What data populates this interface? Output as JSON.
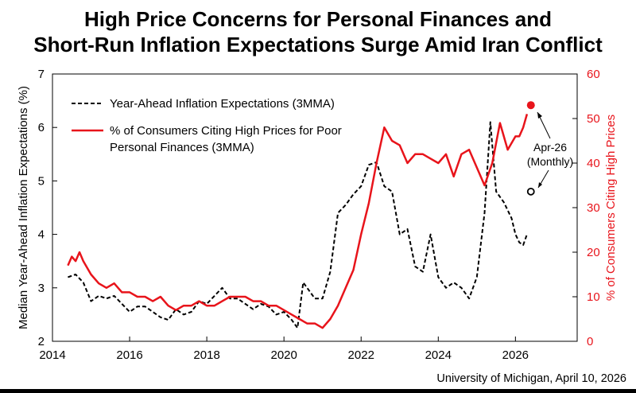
{
  "title_line1": "High Price Concerns for Personal Finances and",
  "title_line2": "Short-Run Inflation Expectations Surge Amid Iran Conflict",
  "source": "University of Michigan, April 10, 2026",
  "colors": {
    "inflation": "#000000",
    "high_prices": "#e8141b"
  },
  "chart_data": {
    "type": "line",
    "title": "High Price Concerns for Personal Finances and Short-Run Inflation Expectations Surge Amid Iran Conflict",
    "xlim": [
      2014,
      2027.6
    ],
    "x_ticks": [
      2014,
      2016,
      2018,
      2020,
      2022,
      2024,
      2026
    ],
    "x_tick_labels": [
      "2014",
      "2016",
      "2018",
      "2020",
      "2022",
      "2024",
      "2026"
    ],
    "ylabel_left": "Median Year-Ahead Inflation Expectations (%)",
    "ylim_left": [
      2,
      7
    ],
    "y_ticks_left": [
      2,
      3,
      4,
      5,
      6,
      7
    ],
    "ylabel_right": "% of Consumers Citing High Prices",
    "ylim_right": [
      0,
      60
    ],
    "y_ticks_right": [
      0,
      10,
      20,
      30,
      40,
      50,
      60
    ],
    "grid": false,
    "legend_position": "top-left",
    "series": [
      {
        "name": "Year-Ahead Inflation Expectations (3MMA)",
        "axis": "left",
        "style": "dashed",
        "color": "#000000",
        "x": [
          2014.4,
          2014.6,
          2014.8,
          2015.0,
          2015.2,
          2015.4,
          2015.6,
          2015.8,
          2016.0,
          2016.2,
          2016.4,
          2016.6,
          2016.8,
          2017.0,
          2017.2,
          2017.4,
          2017.6,
          2017.8,
          2018.0,
          2018.2,
          2018.4,
          2018.6,
          2018.8,
          2019.0,
          2019.2,
          2019.4,
          2019.6,
          2019.8,
          2020.0,
          2020.2,
          2020.35,
          2020.5,
          2020.6,
          2020.8,
          2021.0,
          2021.2,
          2021.4,
          2021.6,
          2021.8,
          2022.0,
          2022.2,
          2022.4,
          2022.6,
          2022.8,
          2023.0,
          2023.2,
          2023.4,
          2023.6,
          2023.8,
          2024.0,
          2024.2,
          2024.4,
          2024.6,
          2024.8,
          2025.0,
          2025.2,
          2025.35,
          2025.5,
          2025.7,
          2025.9,
          2026.0,
          2026.1,
          2026.2,
          2026.3
        ],
        "y": [
          3.2,
          3.25,
          3.1,
          2.75,
          2.85,
          2.8,
          2.85,
          2.7,
          2.55,
          2.65,
          2.65,
          2.55,
          2.45,
          2.4,
          2.6,
          2.5,
          2.55,
          2.75,
          2.7,
          2.85,
          3.0,
          2.8,
          2.8,
          2.7,
          2.6,
          2.7,
          2.65,
          2.5,
          2.55,
          2.4,
          2.25,
          3.1,
          3.0,
          2.8,
          2.8,
          3.3,
          4.4,
          4.55,
          4.75,
          4.9,
          5.3,
          5.35,
          4.9,
          4.8,
          4.0,
          4.1,
          3.4,
          3.3,
          4.0,
          3.2,
          3.0,
          3.1,
          3.0,
          2.8,
          3.2,
          4.4,
          6.1,
          4.8,
          4.6,
          4.3,
          4.0,
          3.85,
          3.8,
          4.0
        ]
      },
      {
        "name": "% of Consumers Citing High Prices for Poor Personal Finances (3MMA)",
        "axis": "right",
        "style": "solid",
        "color": "#e8141b",
        "x": [
          2014.4,
          2014.5,
          2014.6,
          2014.7,
          2014.8,
          2015.0,
          2015.2,
          2015.4,
          2015.6,
          2015.8,
          2016.0,
          2016.2,
          2016.4,
          2016.6,
          2016.8,
          2017.0,
          2017.2,
          2017.4,
          2017.6,
          2017.8,
          2018.0,
          2018.2,
          2018.4,
          2018.6,
          2018.8,
          2019.0,
          2019.2,
          2019.4,
          2019.6,
          2019.8,
          2020.0,
          2020.2,
          2020.4,
          2020.6,
          2020.8,
          2021.0,
          2021.2,
          2021.4,
          2021.6,
          2021.8,
          2022.0,
          2022.2,
          2022.4,
          2022.6,
          2022.8,
          2023.0,
          2023.2,
          2023.4,
          2023.6,
          2023.8,
          2024.0,
          2024.2,
          2024.4,
          2024.6,
          2024.8,
          2025.0,
          2025.2,
          2025.4,
          2025.6,
          2025.8,
          2026.0,
          2026.1,
          2026.2,
          2026.3
        ],
        "y": [
          17,
          19,
          18,
          20,
          18,
          15,
          13,
          12,
          13,
          11,
          11,
          10,
          10,
          9,
          10,
          8,
          7,
          8,
          8,
          9,
          8,
          8,
          9,
          10,
          10,
          10,
          9,
          9,
          8,
          8,
          7,
          6,
          5,
          4,
          4,
          3,
          5,
          8,
          12,
          16,
          24,
          31,
          40,
          48,
          45,
          44,
          40,
          42,
          42,
          41,
          40,
          42,
          37,
          42,
          43,
          39,
          35,
          40,
          49,
          43,
          46,
          46,
          48,
          51
        ]
      },
      {
        "name": "Apr-26 (Monthly) — Year-Ahead Inflation Expectations",
        "axis": "left",
        "style": "point-open",
        "x": [
          2026.4
        ],
        "y": [
          4.8
        ]
      },
      {
        "name": "Apr-26 (Monthly) — % Citing High Prices",
        "axis": "right",
        "style": "point-filled",
        "x": [
          2026.4
        ],
        "y": [
          53
        ]
      }
    ],
    "legend": [
      {
        "line1": "Year-Ahead Inflation Expectations (3MMA)",
        "line2": ""
      },
      {
        "line1": "% of Consumers Citing High Prices for Poor",
        "line2": "Personal Finances (3MMA)"
      }
    ],
    "annotation": {
      "line1": "Apr-26",
      "line2": "(Monthly)"
    }
  }
}
